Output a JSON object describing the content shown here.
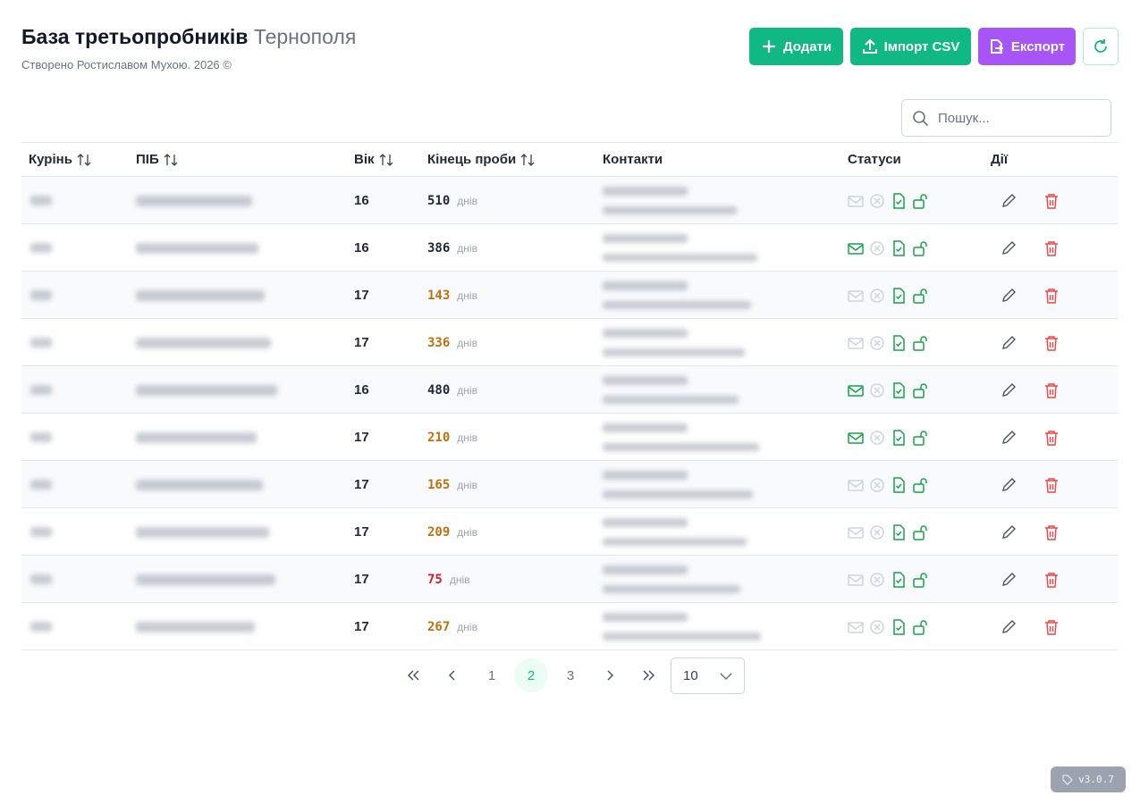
{
  "header": {
    "title": "База третьопробників",
    "title_accent": "Тернополя",
    "subtitle": "Створено Ростиславом Мухою. 2026 ©"
  },
  "buttons": {
    "add": "Додати",
    "import": "Імпорт CSV",
    "export": "Експорт"
  },
  "search": {
    "placeholder": "Пошук..."
  },
  "table": {
    "columns": [
      "Курінь",
      "ПІБ",
      "Вік",
      "Кінець проби",
      "Контакти",
      "Статуси",
      "Дії"
    ],
    "days_unit": "днів",
    "rows": [
      {
        "age": 16,
        "days": 510,
        "days_color": "#1f2937",
        "email_sent": false
      },
      {
        "age": 16,
        "days": 386,
        "days_color": "#1f2937",
        "email_sent": true
      },
      {
        "age": 17,
        "days": 143,
        "days_color": "#c2700b",
        "email_sent": false
      },
      {
        "age": 17,
        "days": 336,
        "days_color": "#c2700b",
        "email_sent": false
      },
      {
        "age": 16,
        "days": 480,
        "days_color": "#1f2937",
        "email_sent": true
      },
      {
        "age": 17,
        "days": 210,
        "days_color": "#c2700b",
        "email_sent": true
      },
      {
        "age": 17,
        "days": 165,
        "days_color": "#c2700b",
        "email_sent": false
      },
      {
        "age": 17,
        "days": 209,
        "days_color": "#c2700b",
        "email_sent": false
      },
      {
        "age": 17,
        "days": 75,
        "days_color": "#d0202e",
        "email_sent": false
      },
      {
        "age": 17,
        "days": 267,
        "days_color": "#c2700b",
        "email_sent": false
      }
    ]
  },
  "pagination": {
    "pages": [
      1,
      2,
      3
    ],
    "current": 2,
    "page_size": 10
  },
  "version": "v3.0.7"
}
